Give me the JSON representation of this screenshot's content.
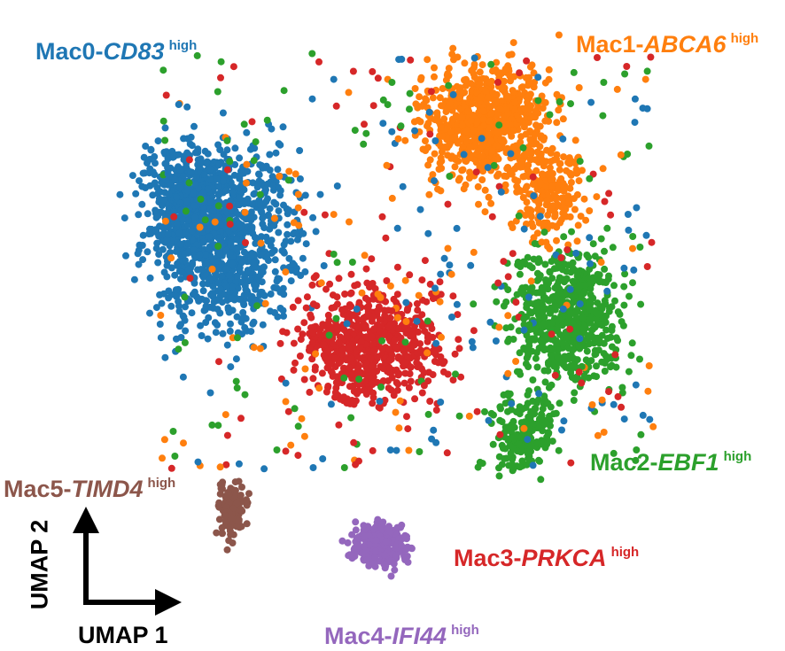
{
  "chart_data": {
    "type": "scatter",
    "title": "",
    "xlabel": "UMAP 1",
    "ylabel": "UMAP 2",
    "grid": false,
    "legend": "cluster labels placed directly on the plot",
    "series": [
      {
        "name": "Mac0",
        "gene": "CD83",
        "suffix": "high",
        "color": "#1f77b4"
      },
      {
        "name": "Mac1",
        "gene": "ABCA6",
        "suffix": "high",
        "color": "#ff7f0e"
      },
      {
        "name": "Mac2",
        "gene": "EBF1",
        "suffix": "high",
        "color": "#2ca02c"
      },
      {
        "name": "Mac3",
        "gene": "PRKCA",
        "suffix": "high",
        "color": "#d62728"
      },
      {
        "name": "Mac4",
        "gene": "IFI44",
        "suffix": "high",
        "color": "#9467bd"
      },
      {
        "name": "Mac5",
        "gene": "TIMD4",
        "suffix": "high",
        "color": "#8c564b"
      }
    ]
  }
}
